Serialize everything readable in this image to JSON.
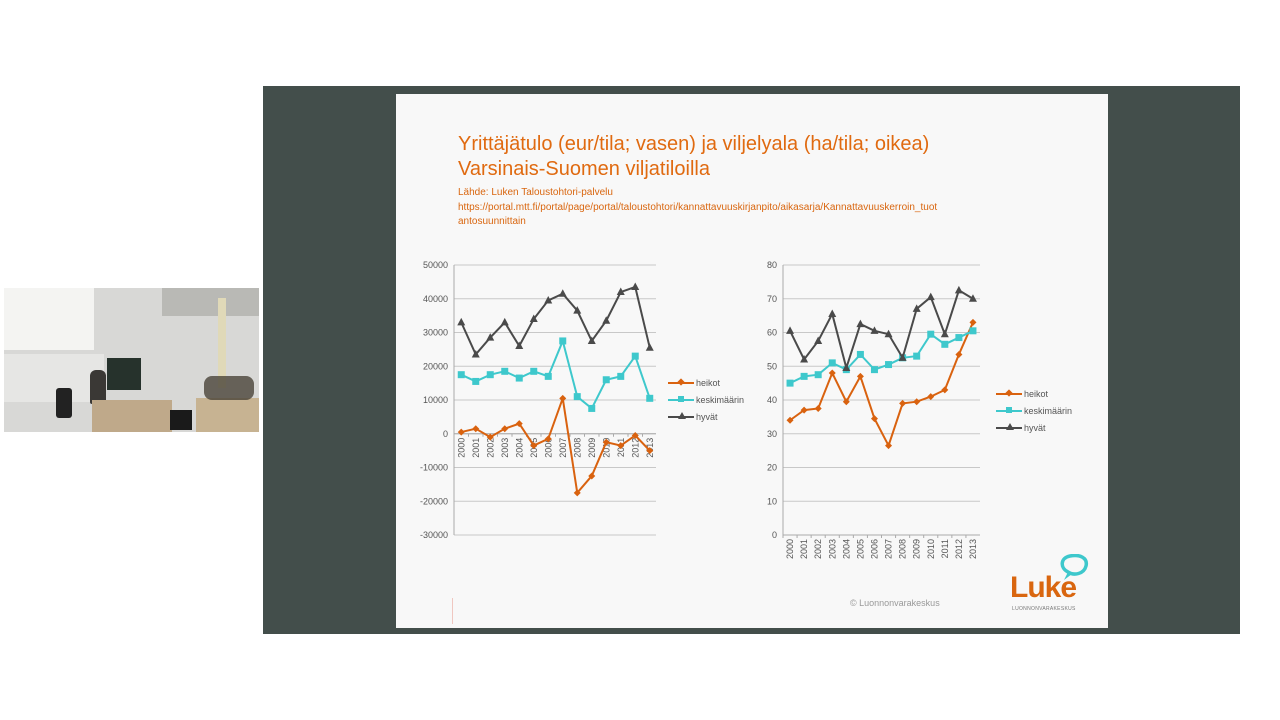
{
  "slide": {
    "title_line1": "Yrittäjätulo (eur/tila; vasen) ja viljelyala (ha/tila; oikea)",
    "title_line2": "Varsinais-Suomen viljatiloilla",
    "source_label": "Lähde: Luken Taloustohtori-palvelu",
    "source_url_line1": "https://portal.mtt.fi/portal/page/portal/taloustohtori/kannattavuuskirjanpito/aikasarja/Kannattavuuskerroin_tuot",
    "source_url_line2": "antosuunnittain",
    "copyright": "© Luonnonvarakeskus",
    "logo_word": "Luke",
    "logo_sub": "LUONNONVARAKESKUS"
  },
  "colors": {
    "heikot": "#d9620f",
    "keskimaarin": "#3ec8cc",
    "hyvat": "#4a4a4a",
    "title": "#e06a10",
    "frame": "#434e4b",
    "logo_bubble": "#3ec8cc"
  },
  "legend": {
    "left": [
      "heikot",
      "keskimäärin",
      "hyvät"
    ],
    "right": [
      "heikot",
      "keskimäärin",
      "hyvät"
    ]
  },
  "chart_data": [
    {
      "type": "line",
      "title": "Yrittäjätulo (eur/tila)",
      "xlabel": "",
      "ylabel": "eur/tila",
      "ylim": [
        -30000,
        50000
      ],
      "yticks": [
        -30000,
        -20000,
        -10000,
        0,
        10000,
        20000,
        30000,
        40000,
        50000
      ],
      "grid": true,
      "legend_position": "right",
      "categories": [
        "2000",
        "2001",
        "2002",
        "2003",
        "2004",
        "2005",
        "2006",
        "2007",
        "2008",
        "2009",
        "2010",
        "2011",
        "2012",
        "2013"
      ],
      "series": [
        {
          "name": "heikot",
          "marker": "diamond",
          "values": [
            500,
            1500,
            -1000,
            1500,
            3000,
            -3500,
            -1500,
            10500,
            -17500,
            -12500,
            -2500,
            -3500,
            -500,
            -5000
          ]
        },
        {
          "name": "keskimäärin",
          "marker": "square",
          "values": [
            17500,
            15500,
            17500,
            18500,
            16500,
            18500,
            17000,
            27500,
            11000,
            7500,
            16000,
            17000,
            23000,
            10500
          ]
        },
        {
          "name": "hyvät",
          "marker": "triangle",
          "values": [
            33000,
            23500,
            28500,
            33000,
            26000,
            34000,
            39500,
            41500,
            36500,
            27500,
            33500,
            42000,
            43500,
            25500
          ]
        }
      ]
    },
    {
      "type": "line",
      "title": "Viljelyala (ha/tila)",
      "xlabel": "",
      "ylabel": "ha/tila",
      "ylim": [
        0,
        80
      ],
      "yticks": [
        0,
        10,
        20,
        30,
        40,
        50,
        60,
        70,
        80
      ],
      "grid": true,
      "legend_position": "right",
      "categories": [
        "2000",
        "2001",
        "2002",
        "2003",
        "2004",
        "2005",
        "2006",
        "2007",
        "2008",
        "2009",
        "2010",
        "2011",
        "2012",
        "2013"
      ],
      "series": [
        {
          "name": "heikot",
          "marker": "diamond",
          "values": [
            34,
            37,
            37.5,
            48,
            39.5,
            47,
            34.5,
            26.5,
            39,
            39.5,
            41,
            43,
            53.5,
            63
          ]
        },
        {
          "name": "keskimäärin",
          "marker": "square",
          "values": [
            45,
            47,
            47.5,
            51,
            49,
            53.5,
            49,
            50.5,
            52.5,
            53,
            59.5,
            56.5,
            58.5,
            60.5
          ]
        },
        {
          "name": "hyvät",
          "marker": "triangle",
          "values": [
            60.5,
            52,
            57.5,
            65.5,
            49.5,
            62.5,
            60.5,
            59.5,
            52.5,
            67,
            70.5,
            59.5,
            72.5,
            70
          ]
        }
      ]
    }
  ]
}
